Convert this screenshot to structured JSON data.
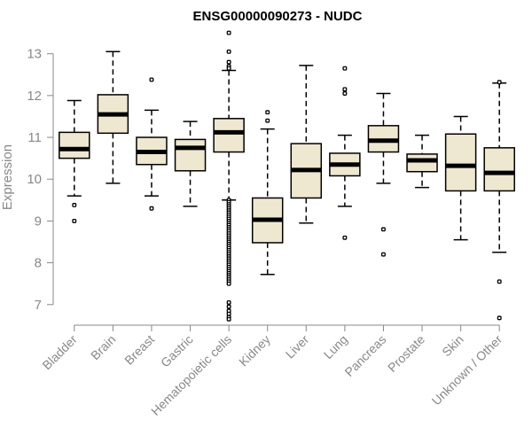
{
  "chart_data": {
    "type": "boxplot",
    "title": "ENSG00000090273 - NUDC",
    "ylabel": "Expression",
    "ylim": [
      6.55,
      13.65
    ],
    "yticks": [
      7,
      8,
      9,
      10,
      11,
      12,
      13
    ],
    "categories": [
      "Bladder",
      "Brain",
      "Breast",
      "Gastric",
      "Hematopoietic cells",
      "Kidney",
      "Liver",
      "Lung",
      "Pancreas",
      "Prostate",
      "Skin",
      "Unknown / Other"
    ],
    "box_color": "#efe8d0",
    "boxes": [
      {
        "min": 9.6,
        "q1": 10.5,
        "median": 10.72,
        "q3": 11.12,
        "max": 11.88,
        "outliers": [
          9.38,
          9.0
        ]
      },
      {
        "min": 9.9,
        "q1": 11.1,
        "median": 11.55,
        "q3": 12.02,
        "max": 13.05,
        "outliers": []
      },
      {
        "min": 9.6,
        "q1": 10.35,
        "median": 10.65,
        "q3": 11.0,
        "max": 11.65,
        "outliers": [
          12.38,
          9.3
        ]
      },
      {
        "min": 9.35,
        "q1": 10.2,
        "median": 10.75,
        "q3": 10.95,
        "max": 11.38,
        "outliers": []
      },
      {
        "min": 9.5,
        "q1": 10.65,
        "median": 11.12,
        "q3": 11.45,
        "max": 12.6,
        "outliers": [
          13.5,
          13.05,
          12.8,
          12.7,
          12.65,
          9.5,
          9.45,
          9.4,
          9.35,
          9.3,
          9.25,
          9.2,
          9.15,
          9.1,
          9.05,
          9.0,
          8.95,
          8.9,
          8.85,
          8.8,
          8.75,
          8.7,
          8.65,
          8.6,
          8.55,
          8.5,
          8.45,
          8.4,
          8.35,
          8.3,
          8.25,
          8.2,
          8.15,
          8.1,
          8.05,
          8.0,
          7.95,
          7.9,
          7.85,
          7.8,
          7.75,
          7.7,
          7.65,
          7.6,
          7.55,
          7.5,
          7.05,
          6.95,
          6.85,
          6.78,
          6.7,
          6.65
        ]
      },
      {
        "min": 7.72,
        "q1": 8.48,
        "median": 9.03,
        "q3": 9.55,
        "max": 11.2,
        "outliers": [
          11.6,
          11.4
        ]
      },
      {
        "min": 8.95,
        "q1": 9.55,
        "median": 10.22,
        "q3": 10.85,
        "max": 12.72,
        "outliers": []
      },
      {
        "min": 9.35,
        "q1": 10.08,
        "median": 10.35,
        "q3": 10.62,
        "max": 11.05,
        "outliers": [
          12.65,
          12.15,
          12.05,
          8.6
        ]
      },
      {
        "min": 9.9,
        "q1": 10.65,
        "median": 10.92,
        "q3": 11.28,
        "max": 12.05,
        "outliers": [
          8.8,
          8.2
        ]
      },
      {
        "min": 9.8,
        "q1": 10.18,
        "median": 10.45,
        "q3": 10.6,
        "max": 11.05,
        "outliers": []
      },
      {
        "min": 8.55,
        "q1": 9.72,
        "median": 10.32,
        "q3": 11.08,
        "max": 11.5,
        "outliers": []
      },
      {
        "min": 8.25,
        "q1": 9.72,
        "median": 10.15,
        "q3": 10.75,
        "max": 12.3,
        "outliers": [
          12.32,
          7.55,
          6.68
        ]
      }
    ]
  }
}
